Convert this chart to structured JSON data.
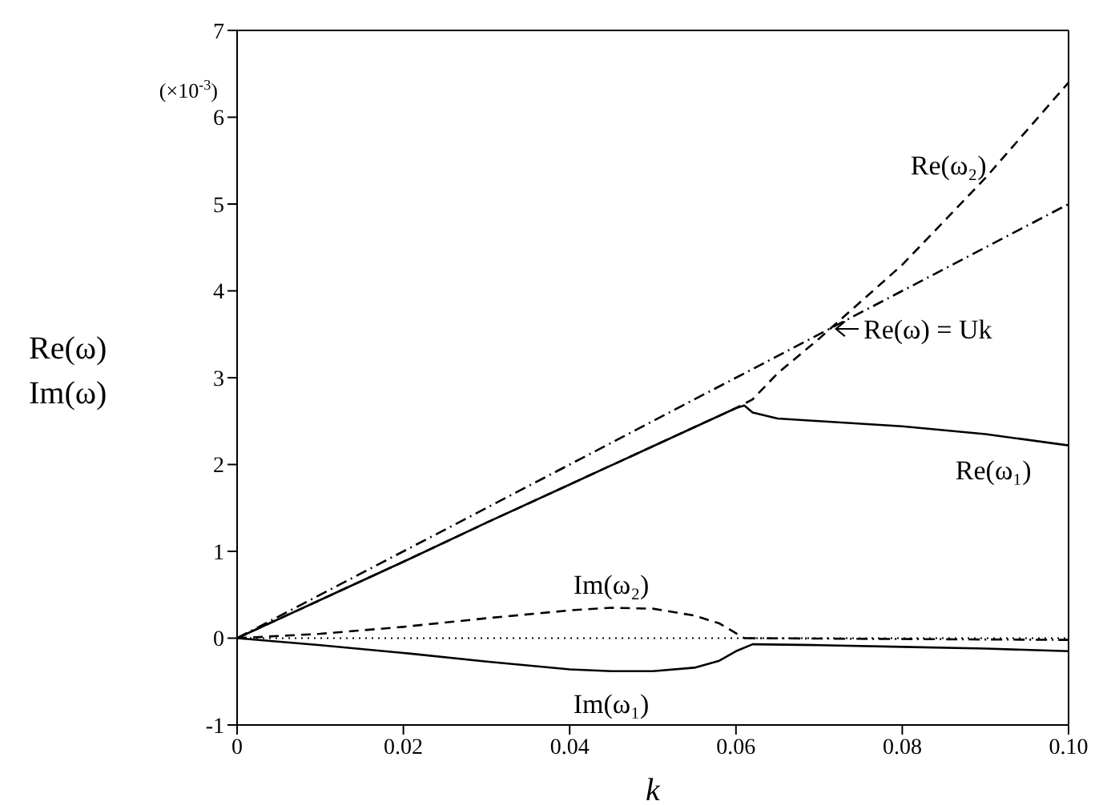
{
  "chart_data": {
    "type": "line",
    "xlabel": "k",
    "ylabel": "Re(ω)\nIm(ω)",
    "xlim": [
      0,
      0.1
    ],
    "ylim": [
      -1,
      7
    ],
    "xticks": [
      0,
      0.02,
      0.04,
      0.06,
      0.08,
      {
        "value": 0.1,
        "label": "0.10"
      }
    ],
    "yticks": [
      -1,
      0,
      1,
      2,
      3,
      4,
      5,
      6,
      7
    ],
    "marker": "none",
    "series": [
      {
        "name": "Re(ω₁)",
        "color": "#000000",
        "line_style": "solid",
        "x": [
          0,
          0.01,
          0.02,
          0.03,
          0.04,
          0.05,
          0.06,
          0.061,
          0.062,
          0.065,
          0.07,
          0.08,
          0.09,
          0.1
        ],
        "values": [
          0,
          0.44,
          0.88,
          1.33,
          1.77,
          2.21,
          2.65,
          2.68,
          2.6,
          2.53,
          2.5,
          2.44,
          2.35,
          2.22
        ]
      },
      {
        "name": "Re(ω₂)",
        "color": "#000000",
        "line_style": "dashed",
        "x": [
          0,
          0.01,
          0.02,
          0.03,
          0.04,
          0.05,
          0.06,
          0.062,
          0.065,
          0.07,
          0.08,
          0.09,
          0.1
        ],
        "values": [
          0,
          0.44,
          0.88,
          1.33,
          1.77,
          2.21,
          2.65,
          2.75,
          3.05,
          3.45,
          4.3,
          5.3,
          6.4
        ]
      },
      {
        "name": "Re(ω) = Uk",
        "color": "#000000",
        "line_style": "dashdot",
        "x": [
          0,
          0.1
        ],
        "values": [
          0,
          5
        ]
      },
      {
        "name": "Im(ω₂)",
        "color": "#000000",
        "line_style": "dashed",
        "x": [
          0,
          0.01,
          0.02,
          0.03,
          0.04,
          0.045,
          0.05,
          0.055,
          0.058,
          0.061
        ],
        "values": [
          0,
          0.05,
          0.13,
          0.23,
          0.32,
          0.35,
          0.34,
          0.26,
          0.17,
          0
        ]
      },
      {
        "name": "Im(ω₁)",
        "color": "#000000",
        "line_style": "solid",
        "x": [
          0,
          0.01,
          0.02,
          0.03,
          0.04,
          0.045,
          0.05,
          0.055,
          0.058,
          0.06,
          0.062,
          0.07,
          0.08,
          0.09,
          0.1
        ],
        "values": [
          0,
          -0.08,
          -0.17,
          -0.27,
          -0.36,
          -0.38,
          -0.38,
          -0.34,
          -0.26,
          -0.15,
          -0.07,
          -0.08,
          -0.1,
          -0.12,
          -0.15
        ]
      },
      {
        "color": "#000000",
        "line_style": "dashdot",
        "x": [
          0.061,
          0.1
        ],
        "values": [
          0,
          -0.02
        ]
      }
    ],
    "ref_lines": [
      {
        "axis": "y",
        "value": 0,
        "color": "#000000",
        "line_style": "dotted"
      }
    ],
    "annotations": [
      "(×10$^{-3}$)"
    ]
  }
}
